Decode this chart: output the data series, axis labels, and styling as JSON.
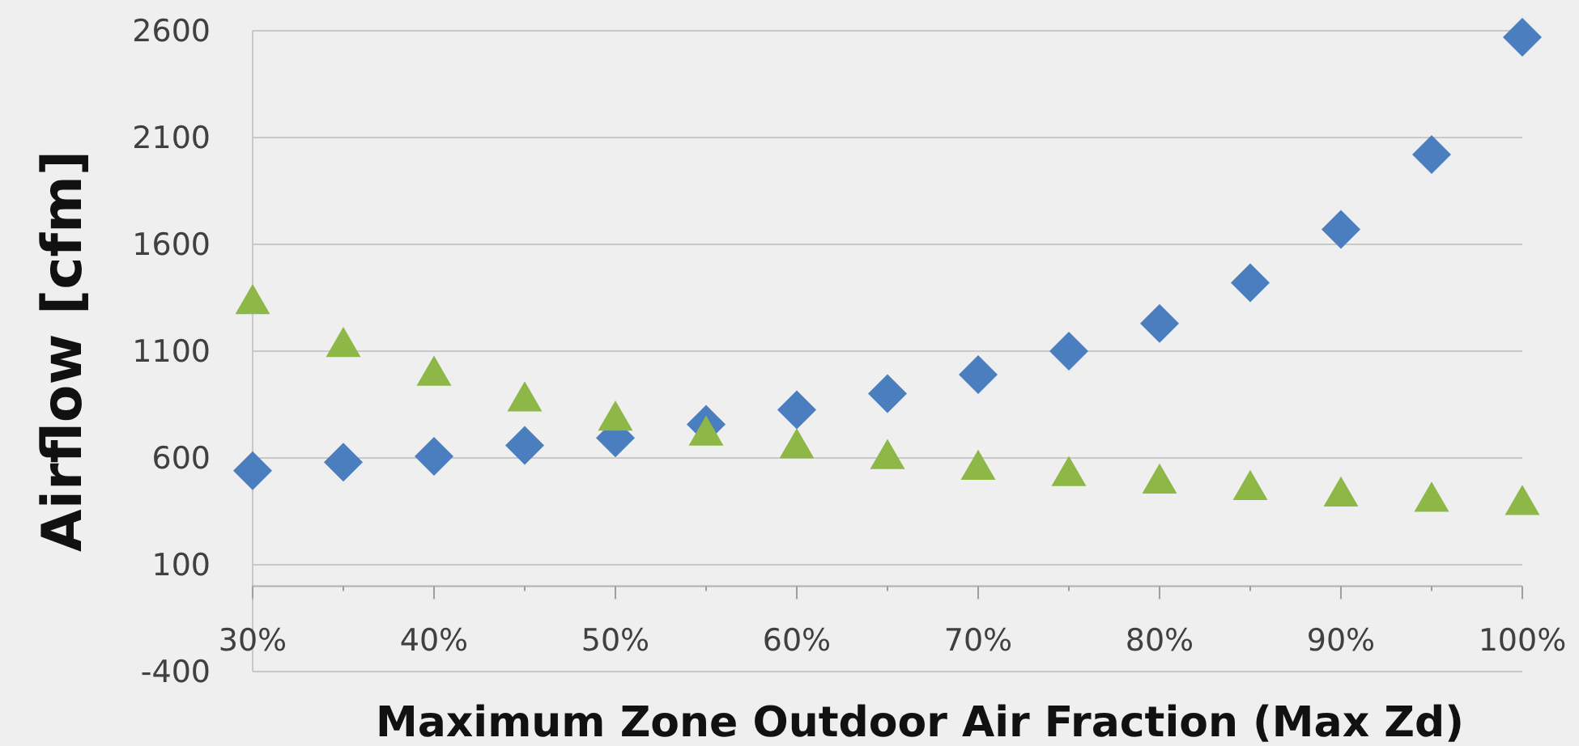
{
  "chart_data": {
    "type": "scatter",
    "xlabel": "Maximum Zone Outdoor Air Fraction (Max Zd)",
    "ylabel": "Airflow [cfm]",
    "x": [
      0.3,
      0.35,
      0.4,
      0.45,
      0.5,
      0.55,
      0.6,
      0.65,
      0.7,
      0.75,
      0.8,
      0.85,
      0.9,
      0.95,
      1.0
    ],
    "series": [
      {
        "color": "#4a7ebf",
        "marker": "diamond",
        "values": [
          540,
          580,
          608,
          659,
          694,
          757,
          825,
          901,
          990,
          1100,
          1230,
          1420,
          1670,
          2020,
          2570
        ]
      },
      {
        "color": "#8db848",
        "marker": "triangle",
        "values": [
          1320,
          1120,
          985,
          865,
          775,
          705,
          645,
          595,
          545,
          515,
          480,
          450,
          420,
          395,
          380
        ]
      }
    ],
    "xlim": [
      0.3,
      1.0
    ],
    "xticks": [
      {
        "value": 0.3,
        "label": "30%"
      },
      {
        "value": 0.35,
        "label": null
      },
      {
        "value": 0.4,
        "label": "40%"
      },
      {
        "value": 0.45,
        "label": null
      },
      {
        "value": 0.5,
        "label": "50%"
      },
      {
        "value": 0.55,
        "label": null
      },
      {
        "value": 0.6,
        "label": "60%"
      },
      {
        "value": 0.65,
        "label": null
      },
      {
        "value": 0.7,
        "label": "70%"
      },
      {
        "value": 0.75,
        "label": null
      },
      {
        "value": 0.8,
        "label": "80%"
      },
      {
        "value": 0.85,
        "label": null
      },
      {
        "value": 0.9,
        "label": "90%"
      },
      {
        "value": 0.95,
        "label": null
      },
      {
        "value": 1.0,
        "label": "100%"
      }
    ],
    "ylim": [
      -400,
      2600
    ],
    "yticks": [
      -400,
      100,
      600,
      1100,
      1600,
      2100,
      2600
    ],
    "grid": "y"
  }
}
